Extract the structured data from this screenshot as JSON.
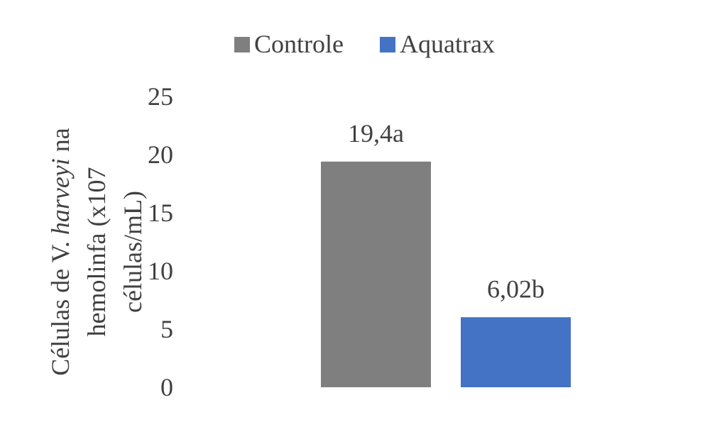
{
  "chart_data": {
    "type": "bar",
    "categories": [
      ""
    ],
    "series": [
      {
        "name": "Controle",
        "values": [
          19.4
        ],
        "label": "19,4a",
        "color": "#7f7f7f"
      },
      {
        "name": "Aquatrax",
        "values": [
          6.02
        ],
        "label": "6,02b",
        "color": "#4472c4"
      }
    ],
    "ylim": [
      0,
      25
    ],
    "yticks": [
      "0",
      "5",
      "10",
      "15",
      "20",
      "25"
    ],
    "ylabel_lines": [
      [
        "Células de V. ",
        {
          "italic": "harveyi"
        },
        " na"
      ],
      [
        "hemolinfa  (x107"
      ],
      [
        "células/mL)"
      ]
    ],
    "legend_position": "top",
    "grid": false
  }
}
